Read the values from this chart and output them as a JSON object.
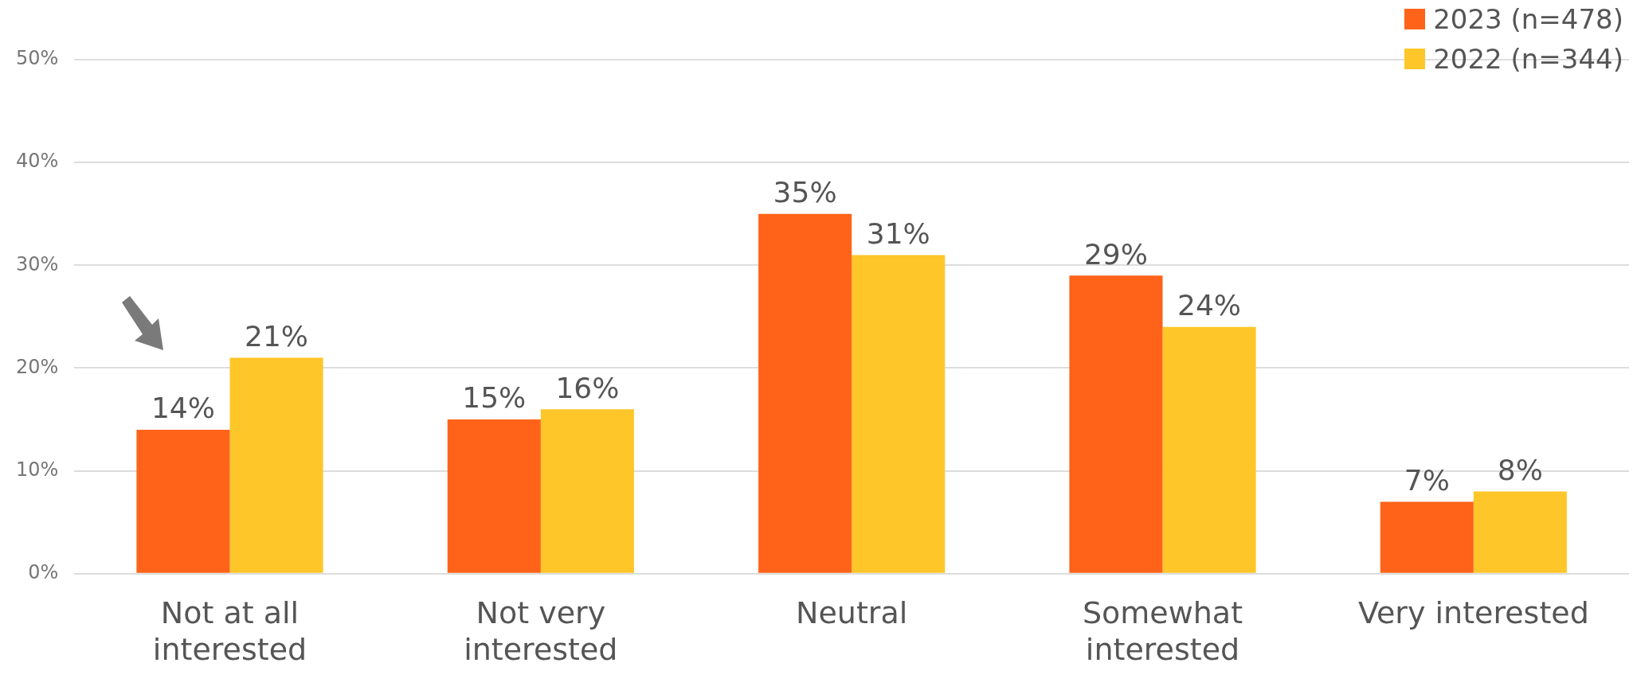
{
  "chart_data": {
    "type": "bar",
    "categories": [
      "Not at all interested",
      "Not very interested",
      "Neutral",
      "Somewhat interested",
      "Very interested"
    ],
    "series": [
      {
        "name": "2023 (n=478)",
        "color": "#ff6319",
        "values": [
          14,
          15,
          35,
          29,
          7
        ],
        "value_labels": [
          "14%",
          "15%",
          "35%",
          "29%",
          "7%"
        ]
      },
      {
        "name": "2022 (n=344)",
        "color": "#ffc629",
        "values": [
          21,
          16,
          31,
          24,
          8
        ],
        "value_labels": [
          "21%",
          "16%",
          "31%",
          "24%",
          "8%"
        ]
      }
    ],
    "ylim": [
      0,
      50
    ],
    "yticks": [
      {
        "value": 0,
        "label": "0%"
      },
      {
        "value": 10,
        "label": "10%"
      },
      {
        "value": 20,
        "label": "20%"
      },
      {
        "value": 30,
        "label": "30%"
      },
      {
        "value": 40,
        "label": "40%"
      },
      {
        "value": 50,
        "label": "50%"
      }
    ],
    "grid": "y",
    "legend": "top right"
  }
}
